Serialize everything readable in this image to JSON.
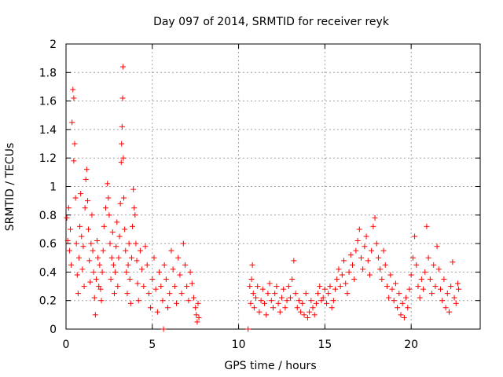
{
  "chart_data": {
    "type": "scatter",
    "title": "Day 097 of 2014, SRMTID for receiver reyk",
    "xlabel": "GPS time / hours",
    "ylabel": "SRMTID / TECUs",
    "xlim": [
      0,
      24
    ],
    "ylim": [
      0,
      2
    ],
    "xticks": [
      0,
      5,
      10,
      15,
      20
    ],
    "yticks": [
      0,
      0.2,
      0.4,
      0.6,
      0.8,
      1,
      1.2,
      1.4,
      1.6,
      1.8,
      2
    ],
    "xtick_labels": [
      "0",
      "5",
      "10",
      "15",
      "20"
    ],
    "ytick_labels": [
      "0",
      "0.2",
      "0.4",
      "0.6",
      "0.8",
      "1",
      "1.2",
      "1.4",
      "1.6",
      "1.8",
      "2"
    ],
    "grid": true,
    "marker": "+",
    "color": "#ff0000",
    "series": [
      {
        "name": "SRMTID",
        "points": [
          [
            0.05,
            0.78
          ],
          [
            0.1,
            0.62
          ],
          [
            0.15,
            0.85
          ],
          [
            0.2,
            0.55
          ],
          [
            0.25,
            0.7
          ],
          [
            0.3,
            0.45
          ],
          [
            0.35,
            1.45
          ],
          [
            0.4,
            1.68
          ],
          [
            0.45,
            1.62
          ],
          [
            0.5,
            1.3
          ],
          [
            0.45,
            1.18
          ],
          [
            0.55,
            0.92
          ],
          [
            0.6,
            0.6
          ],
          [
            0.65,
            0.38
          ],
          [
            0.7,
            0.25
          ],
          [
            0.75,
            0.5
          ],
          [
            0.8,
            0.72
          ],
          [
            0.85,
            0.95
          ],
          [
            0.9,
            0.65
          ],
          [
            0.95,
            0.42
          ],
          [
            1.0,
            0.58
          ],
          [
            1.05,
            0.3
          ],
          [
            1.1,
            0.85
          ],
          [
            1.15,
            1.05
          ],
          [
            1.2,
            1.12
          ],
          [
            1.25,
            0.9
          ],
          [
            1.3,
            0.7
          ],
          [
            1.35,
            0.48
          ],
          [
            1.4,
            0.33
          ],
          [
            1.45,
            0.6
          ],
          [
            1.5,
            0.8
          ],
          [
            1.55,
            0.55
          ],
          [
            1.6,
            0.4
          ],
          [
            1.65,
            0.22
          ],
          [
            1.7,
            0.1
          ],
          [
            1.75,
            0.35
          ],
          [
            1.8,
            0.62
          ],
          [
            1.85,
            0.5
          ],
          [
            1.9,
            0.3
          ],
          [
            1.95,
            0.45
          ],
          [
            2.0,
            0.28
          ],
          [
            2.05,
            0.2
          ],
          [
            2.1,
            0.4
          ],
          [
            2.15,
            0.55
          ],
          [
            2.2,
            0.72
          ],
          [
            2.3,
            0.85
          ],
          [
            2.4,
            1.02
          ],
          [
            2.45,
            0.92
          ],
          [
            2.5,
            0.8
          ],
          [
            2.55,
            0.6
          ],
          [
            2.6,
            0.35
          ],
          [
            2.65,
            0.5
          ],
          [
            2.7,
            0.68
          ],
          [
            2.75,
            0.45
          ],
          [
            2.8,
            0.25
          ],
          [
            2.85,
            0.4
          ],
          [
            2.9,
            0.58
          ],
          [
            2.95,
            0.75
          ],
          [
            3.0,
            0.3
          ],
          [
            3.05,
            0.5
          ],
          [
            3.1,
            0.65
          ],
          [
            3.15,
            0.88
          ],
          [
            3.2,
            1.17
          ],
          [
            3.22,
            1.3
          ],
          [
            3.25,
            1.42
          ],
          [
            3.28,
            1.62
          ],
          [
            3.3,
            1.84
          ],
          [
            3.32,
            1.2
          ],
          [
            3.35,
            0.92
          ],
          [
            3.4,
            0.7
          ],
          [
            3.45,
            0.55
          ],
          [
            3.5,
            0.4
          ],
          [
            3.55,
            0.25
          ],
          [
            3.6,
            0.45
          ],
          [
            3.65,
            0.6
          ],
          [
            3.7,
            0.35
          ],
          [
            3.75,
            0.18
          ],
          [
            3.8,
            0.5
          ],
          [
            3.85,
            0.72
          ],
          [
            3.9,
            0.98
          ],
          [
            3.95,
            0.85
          ],
          [
            4.0,
            0.8
          ],
          [
            4.05,
            0.6
          ],
          [
            4.1,
            0.48
          ],
          [
            4.15,
            0.32
          ],
          [
            4.2,
            0.2
          ],
          [
            4.3,
            0.55
          ],
          [
            4.4,
            0.42
          ],
          [
            4.5,
            0.3
          ],
          [
            4.6,
            0.58
          ],
          [
            4.7,
            0.45
          ],
          [
            4.8,
            0.25
          ],
          [
            4.9,
            0.15
          ],
          [
            5.0,
            0.35
          ],
          [
            5.1,
            0.5
          ],
          [
            5.2,
            0.28
          ],
          [
            5.3,
            0.12
          ],
          [
            5.4,
            0.4
          ],
          [
            5.5,
            0.3
          ],
          [
            5.6,
            0.2
          ],
          [
            5.7,
            0.45
          ],
          [
            5.8,
            0.35
          ],
          [
            5.9,
            0.15
          ],
          [
            6.0,
            0.25
          ],
          [
            6.1,
            0.55
          ],
          [
            6.2,
            0.42
          ],
          [
            6.3,
            0.3
          ],
          [
            6.4,
            0.18
          ],
          [
            6.5,
            0.5
          ],
          [
            6.6,
            0.38
          ],
          [
            6.7,
            0.25
          ],
          [
            6.8,
            0.6
          ],
          [
            6.9,
            0.45
          ],
          [
            7.0,
            0.3
          ],
          [
            7.1,
            0.2
          ],
          [
            7.2,
            0.4
          ],
          [
            7.3,
            0.32
          ],
          [
            7.4,
            0.22
          ],
          [
            7.5,
            0.15
          ],
          [
            7.55,
            0.1
          ],
          [
            7.6,
            0.05
          ],
          [
            7.65,
            0.18
          ],
          [
            7.7,
            0.08
          ],
          [
            5.65,
            0.0
          ],
          [
            10.55,
            0.0
          ],
          [
            10.65,
            0.3
          ],
          [
            10.7,
            0.18
          ],
          [
            10.75,
            0.35
          ],
          [
            10.8,
            0.45
          ],
          [
            10.85,
            0.25
          ],
          [
            10.9,
            0.15
          ],
          [
            11.0,
            0.22
          ],
          [
            11.1,
            0.3
          ],
          [
            11.2,
            0.12
          ],
          [
            11.3,
            0.2
          ],
          [
            11.4,
            0.28
          ],
          [
            11.5,
            0.18
          ],
          [
            11.6,
            0.1
          ],
          [
            11.7,
            0.25
          ],
          [
            11.8,
            0.32
          ],
          [
            11.9,
            0.2
          ],
          [
            12.0,
            0.15
          ],
          [
            12.1,
            0.25
          ],
          [
            12.2,
            0.3
          ],
          [
            12.3,
            0.18
          ],
          [
            12.4,
            0.12
          ],
          [
            12.5,
            0.22
          ],
          [
            12.6,
            0.28
          ],
          [
            12.7,
            0.15
          ],
          [
            12.8,
            0.2
          ],
          [
            12.9,
            0.3
          ],
          [
            13.0,
            0.22
          ],
          [
            13.1,
            0.35
          ],
          [
            13.2,
            0.48
          ],
          [
            13.3,
            0.25
          ],
          [
            13.4,
            0.15
          ],
          [
            13.5,
            0.2
          ],
          [
            13.6,
            0.12
          ],
          [
            13.7,
            0.18
          ],
          [
            13.8,
            0.1
          ],
          [
            13.9,
            0.25
          ],
          [
            14.0,
            0.08
          ],
          [
            14.1,
            0.12
          ],
          [
            14.2,
            0.2
          ],
          [
            14.3,
            0.15
          ],
          [
            14.4,
            0.1
          ],
          [
            14.5,
            0.18
          ],
          [
            14.6,
            0.25
          ],
          [
            14.7,
            0.3
          ],
          [
            14.8,
            0.2
          ],
          [
            14.9,
            0.22
          ],
          [
            15.0,
            0.28
          ],
          [
            15.1,
            0.18
          ],
          [
            15.2,
            0.25
          ],
          [
            15.3,
            0.3
          ],
          [
            15.4,
            0.15
          ],
          [
            15.5,
            0.2
          ],
          [
            15.6,
            0.28
          ],
          [
            15.7,
            0.35
          ],
          [
            15.8,
            0.42
          ],
          [
            15.9,
            0.3
          ],
          [
            16.0,
            0.38
          ],
          [
            16.1,
            0.48
          ],
          [
            16.2,
            0.32
          ],
          [
            16.3,
            0.25
          ],
          [
            16.4,
            0.4
          ],
          [
            16.5,
            0.52
          ],
          [
            16.6,
            0.45
          ],
          [
            16.7,
            0.35
          ],
          [
            16.8,
            0.55
          ],
          [
            16.9,
            0.62
          ],
          [
            17.0,
            0.7
          ],
          [
            17.1,
            0.5
          ],
          [
            17.2,
            0.42
          ],
          [
            17.3,
            0.58
          ],
          [
            17.4,
            0.65
          ],
          [
            17.5,
            0.48
          ],
          [
            17.6,
            0.38
          ],
          [
            17.7,
            0.55
          ],
          [
            17.8,
            0.72
          ],
          [
            17.9,
            0.78
          ],
          [
            18.0,
            0.6
          ],
          [
            18.1,
            0.5
          ],
          [
            18.2,
            0.42
          ],
          [
            18.3,
            0.35
          ],
          [
            18.4,
            0.55
          ],
          [
            18.5,
            0.45
          ],
          [
            18.6,
            0.3
          ],
          [
            18.7,
            0.22
          ],
          [
            18.8,
            0.38
          ],
          [
            18.9,
            0.28
          ],
          [
            19.0,
            0.2
          ],
          [
            19.1,
            0.32
          ],
          [
            19.2,
            0.15
          ],
          [
            19.3,
            0.25
          ],
          [
            19.4,
            0.1
          ],
          [
            19.5,
            0.18
          ],
          [
            19.6,
            0.08
          ],
          [
            19.7,
            0.22
          ],
          [
            19.8,
            0.15
          ],
          [
            19.9,
            0.28
          ],
          [
            20.0,
            0.38
          ],
          [
            20.1,
            0.5
          ],
          [
            20.2,
            0.65
          ],
          [
            20.3,
            0.45
          ],
          [
            20.4,
            0.3
          ],
          [
            20.5,
            0.22
          ],
          [
            20.6,
            0.35
          ],
          [
            20.7,
            0.28
          ],
          [
            20.8,
            0.4
          ],
          [
            20.9,
            0.72
          ],
          [
            21.0,
            0.5
          ],
          [
            21.1,
            0.35
          ],
          [
            21.2,
            0.25
          ],
          [
            21.3,
            0.45
          ],
          [
            21.4,
            0.3
          ],
          [
            21.5,
            0.58
          ],
          [
            21.6,
            0.42
          ],
          [
            21.7,
            0.28
          ],
          [
            21.8,
            0.2
          ],
          [
            21.9,
            0.35
          ],
          [
            22.0,
            0.15
          ],
          [
            22.1,
            0.25
          ],
          [
            22.2,
            0.12
          ],
          [
            22.3,
            0.3
          ],
          [
            22.4,
            0.47
          ],
          [
            22.5,
            0.22
          ],
          [
            22.6,
            0.18
          ],
          [
            22.7,
            0.32
          ],
          [
            22.75,
            0.28
          ]
        ]
      }
    ]
  }
}
